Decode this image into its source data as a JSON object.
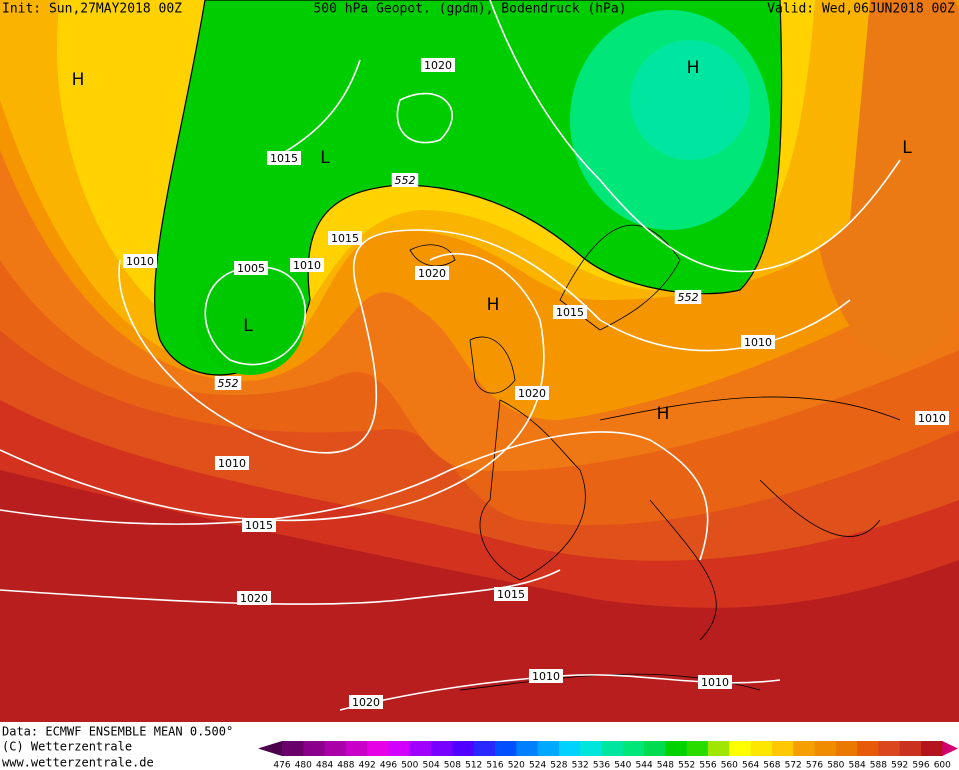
{
  "header": {
    "init": "Init: Sun,27MAY2018 00Z",
    "title": "500 hPa Geopot. (gpdm), Bodendruck (hPa)",
    "valid": "Valid: Wed,06JUN2018 00Z"
  },
  "map": {
    "labels": [
      "H",
      "L",
      1015,
      1020,
      "H",
      "L",
      552,
      1015,
      1010,
      1005,
      1010,
      1020,
      "L",
      "H",
      1015,
      552,
      1010,
      552,
      1020,
      "H",
      1010,
      1010,
      1015,
      1015,
      1020,
      1010,
      1010,
      1020
    ]
  },
  "footer": {
    "lines": [
      "Data: ECMWF ENSEMBLE MEAN 0.500°",
      "(C) Wetterzentrale",
      "www.wetterzentrale.de"
    ]
  },
  "colorbar": {
    "ticks": [
      476,
      480,
      484,
      488,
      492,
      496,
      500,
      504,
      508,
      512,
      516,
      520,
      524,
      528,
      532,
      536,
      540,
      544,
      548,
      552,
      556,
      560,
      564,
      568,
      572,
      576,
      580,
      584,
      588,
      592,
      596,
      600
    ],
    "colors": [
      "#4a004a",
      "#6a006a",
      "#8a008a",
      "#aa00aa",
      "#c800c8",
      "#e600e6",
      "#d200ff",
      "#a000ff",
      "#7800ff",
      "#5000ff",
      "#2828ff",
      "#0050ff",
      "#0080ff",
      "#00a8ff",
      "#00d2ff",
      "#00e6dc",
      "#00e6a0",
      "#00e678",
      "#00dc50",
      "#00d200",
      "#28dc00",
      "#a0e600",
      "#ffff00",
      "#ffe600",
      "#ffc800",
      "#f5a000",
      "#f08c00",
      "#eb7800",
      "#e65a0a",
      "#dc461e",
      "#c8321e",
      "#b4141e",
      "#d2006e"
    ]
  }
}
